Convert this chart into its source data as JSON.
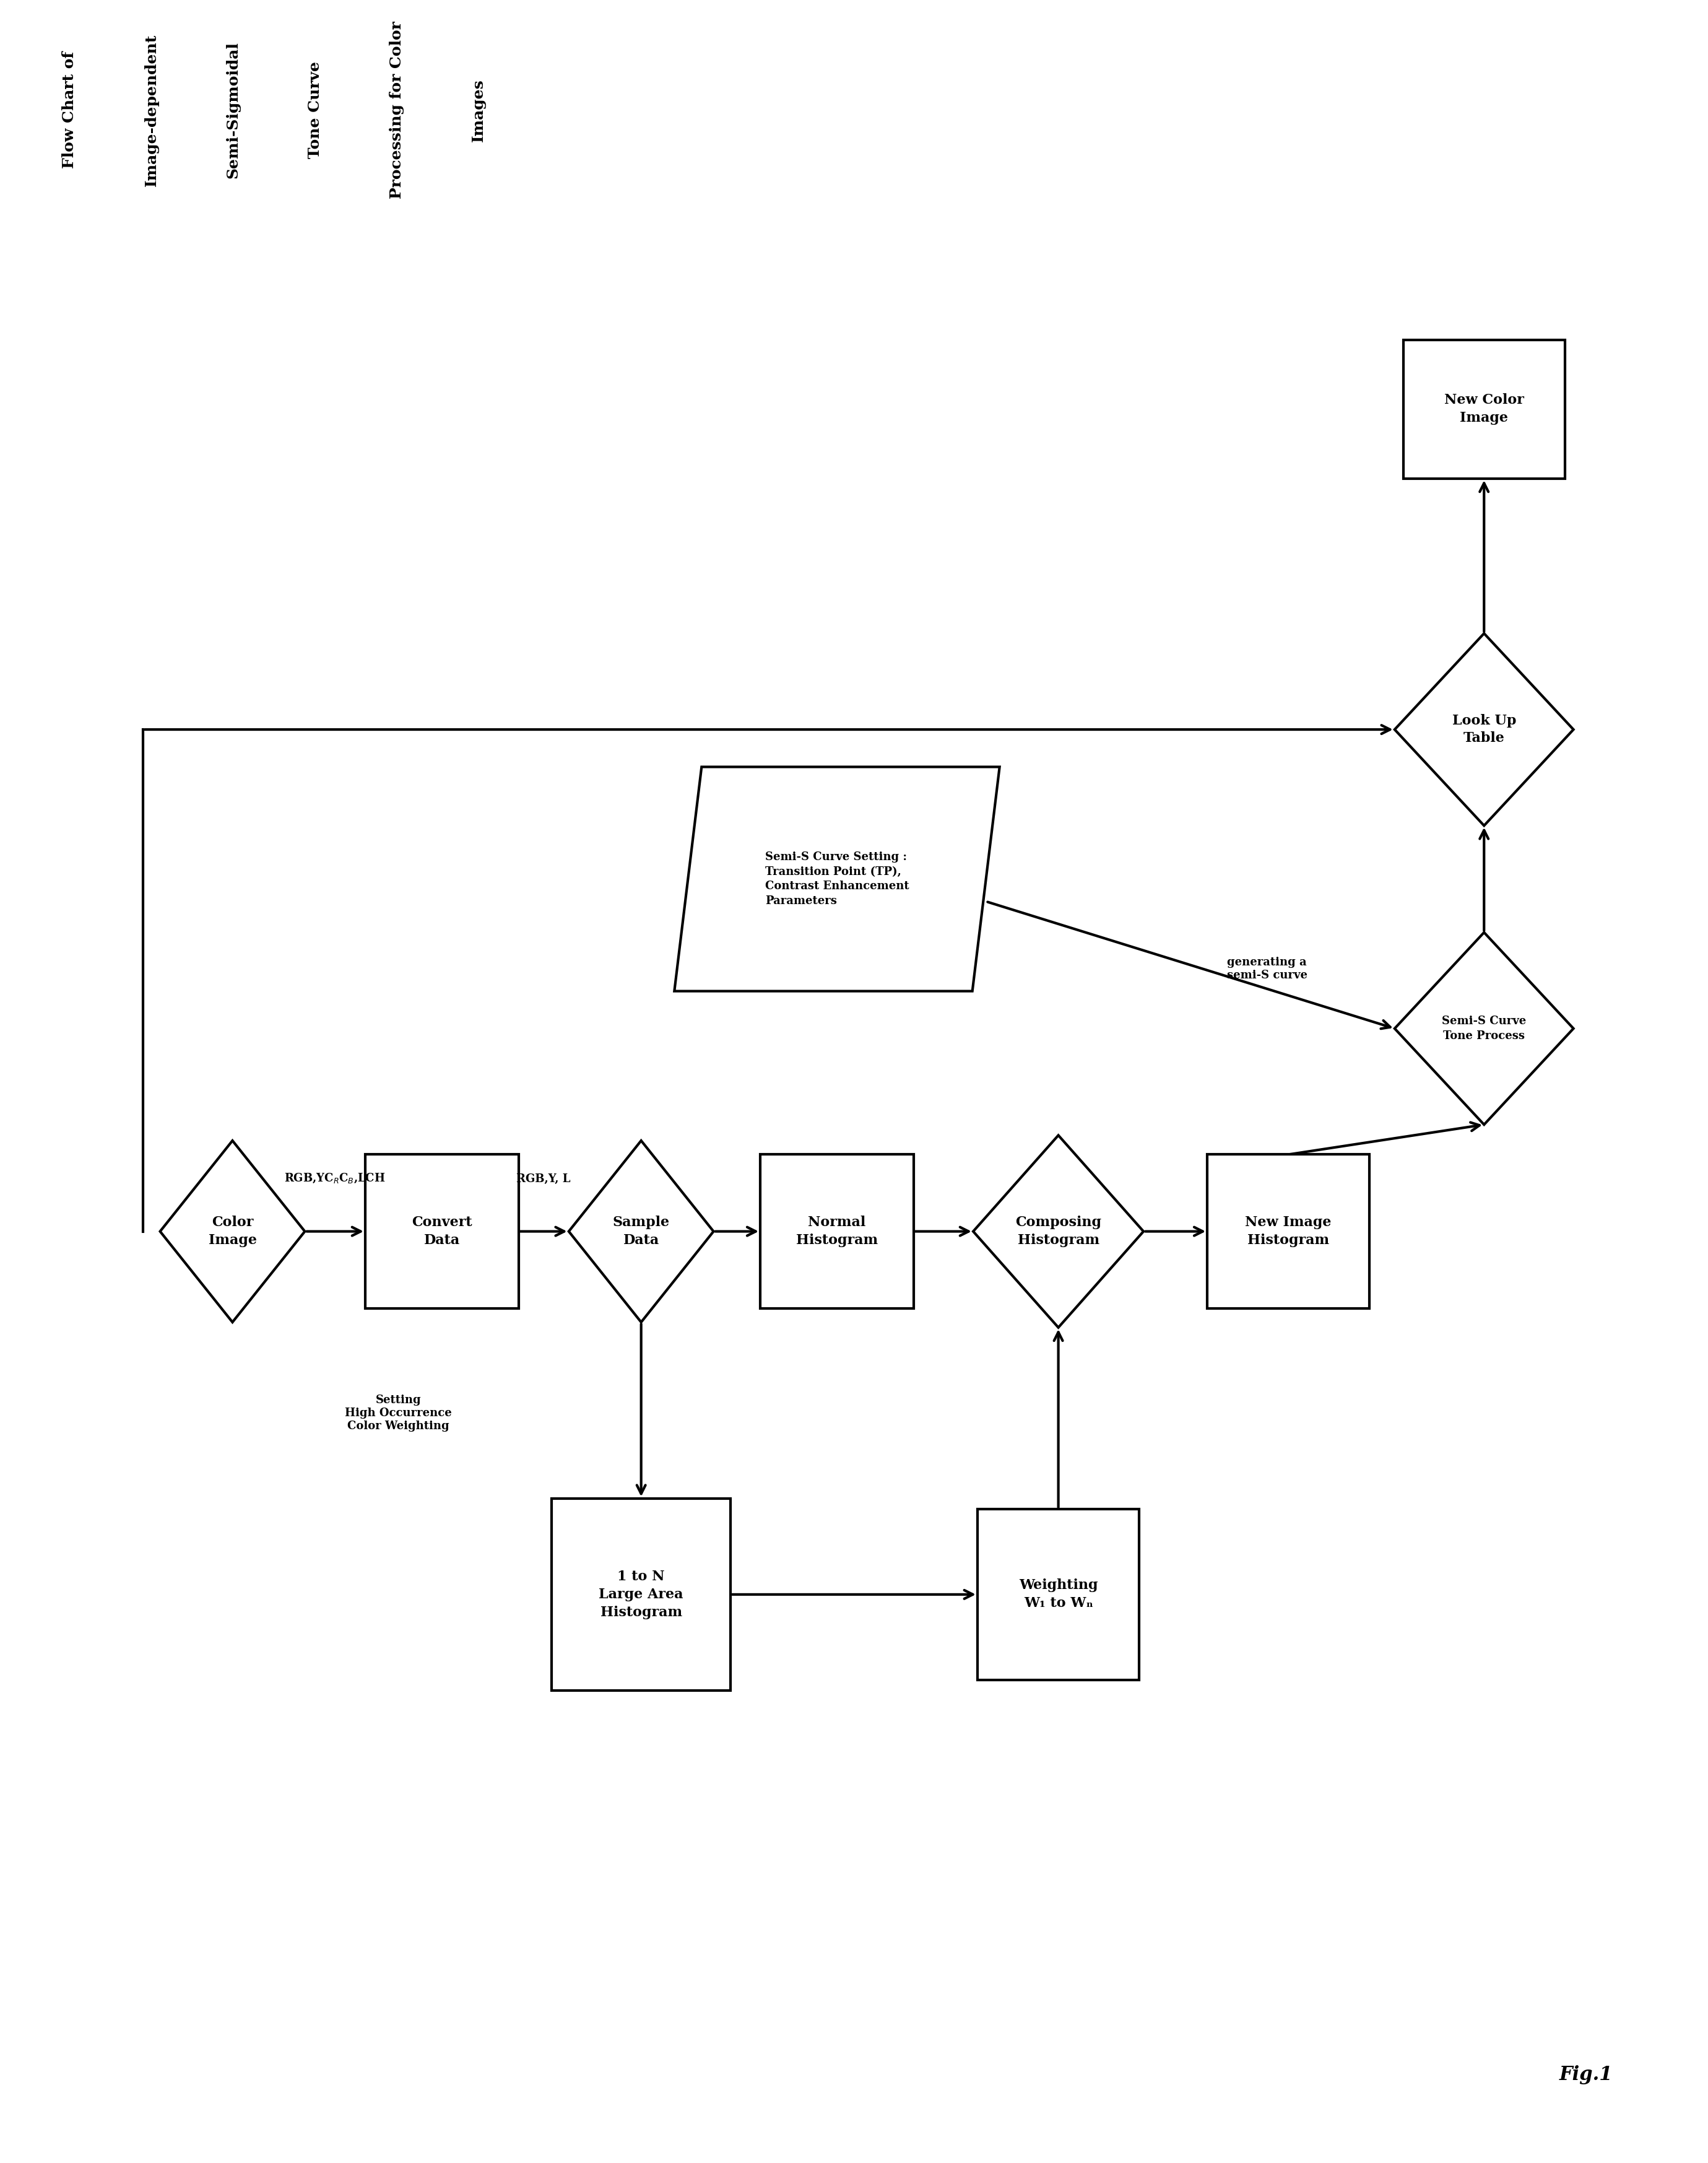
{
  "title_lines": [
    "Flow Chart of",
    "Image-dependent",
    "Semi-Sigmoidal",
    "Tone Curve",
    "Processing for Color",
    "Images"
  ],
  "fig_label": "Fig.1",
  "bg": "#ffffff",
  "lw": 3.0,
  "fs": 16,
  "fs_small": 13,
  "fs_label": 13,
  "fs_title": 18,
  "figsize": [
    27.59,
    34.93
  ]
}
